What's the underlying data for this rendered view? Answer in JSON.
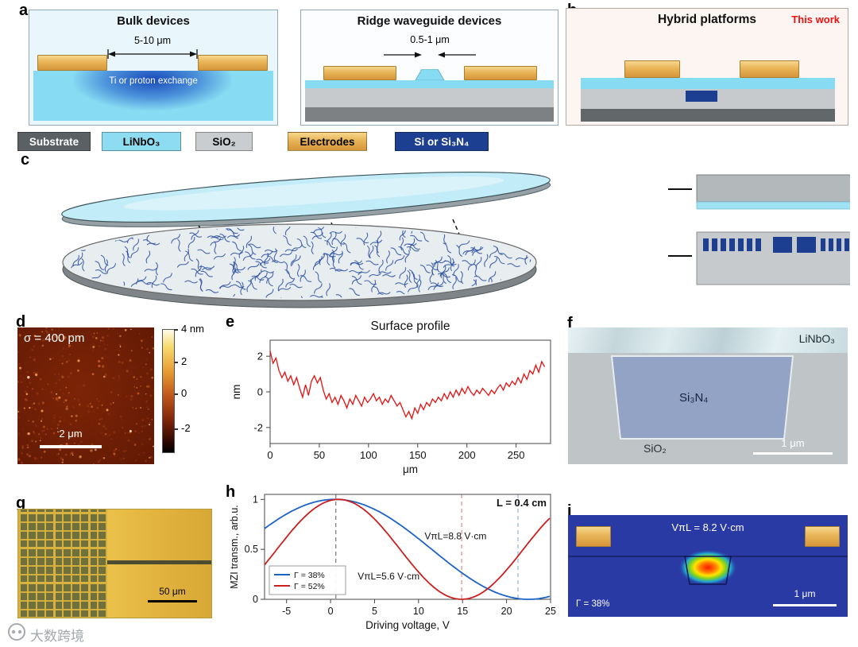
{
  "figure": {
    "panels": {
      "a": {
        "label": "a",
        "bulk": {
          "title": "Bulk devices",
          "dimension": "5-10 μm",
          "region_label": "Ti or proton exchange"
        },
        "ridge": {
          "title": "Ridge waveguide devices",
          "dimension": "0.5-1 μm"
        }
      },
      "legend": [
        {
          "name": "Substrate",
          "color": "#5b6064",
          "text_color": "#ffffff"
        },
        {
          "name": "LiNbO₃",
          "color": "#8edcf2",
          "text_color": "#000000"
        },
        {
          "name": "SiO₂",
          "color": "#c9cdd0",
          "text_color": "#000000"
        },
        {
          "name": "Electrodes",
          "color": "#e9b45c",
          "text_color": "#000000"
        },
        {
          "name": "Si or Si₃N₄",
          "color": "#1d3f91",
          "text_color": "#ffffff"
        }
      ],
      "b": {
        "label": "b",
        "title": "Hybrid platforms",
        "badge": "This work",
        "badge_color": "#ee1111"
      },
      "c": {
        "label": "c"
      },
      "d": {
        "label": "d",
        "sigma": "σ = 400 pm",
        "scalebar": "2 μm",
        "colorbar_labels": [
          "4 nm",
          "2",
          "0",
          "-2"
        ]
      },
      "e": {
        "label": "e"
      },
      "f": {
        "label": "f",
        "top_label": "LiNbO₃",
        "mid_label": "Si₃N₄",
        "bottom_label": "SiO₂",
        "scalebar": "1 μm"
      },
      "g": {
        "label": "g",
        "scalebar": "50 μm"
      },
      "h": {
        "label": "h"
      },
      "i": {
        "label": "i",
        "title": "VπL = 8.2 V·cm",
        "gamma": "Γ = 38%",
        "scalebar": "1 μm"
      }
    },
    "watermark": "大数跨境"
  },
  "chart_data": [
    {
      "id": "surface_profile",
      "type": "line",
      "title": "Surface profile",
      "xlabel": "μm",
      "ylabel": "nm",
      "xlim": [
        0,
        285
      ],
      "ylim": [
        -2.9,
        2.9
      ],
      "xticks": [
        0,
        50,
        100,
        150,
        200,
        250
      ],
      "yticks": [
        -2,
        0,
        2
      ],
      "line_color": "#e81010",
      "points": [
        [
          0,
          2.3
        ],
        [
          3,
          1.6
        ],
        [
          6,
          1.9
        ],
        [
          9,
          1.2
        ],
        [
          12,
          0.8
        ],
        [
          15,
          1.1
        ],
        [
          18,
          0.6
        ],
        [
          21,
          0.9
        ],
        [
          24,
          0.4
        ],
        [
          27,
          0.8
        ],
        [
          30,
          0.2
        ],
        [
          33,
          -0.3
        ],
        [
          36,
          0.4
        ],
        [
          39,
          -0.2
        ],
        [
          42,
          0.6
        ],
        [
          45,
          0.9
        ],
        [
          48,
          0.5
        ],
        [
          51,
          0.8
        ],
        [
          54,
          0.1
        ],
        [
          57,
          -0.4
        ],
        [
          60,
          -0.1
        ],
        [
          63,
          -0.6
        ],
        [
          66,
          -0.3
        ],
        [
          69,
          -0.7
        ],
        [
          72,
          -0.2
        ],
        [
          75,
          -0.5
        ],
        [
          78,
          -0.9
        ],
        [
          81,
          -0.4
        ],
        [
          84,
          -0.7
        ],
        [
          87,
          -0.2
        ],
        [
          90,
          -0.5
        ],
        [
          93,
          -0.8
        ],
        [
          96,
          -0.3
        ],
        [
          99,
          -0.6
        ],
        [
          102,
          -0.4
        ],
        [
          105,
          -0.1
        ],
        [
          108,
          -0.5
        ],
        [
          111,
          -0.3
        ],
        [
          114,
          -0.7
        ],
        [
          117,
          -0.4
        ],
        [
          120,
          -0.6
        ],
        [
          123,
          -0.2
        ],
        [
          126,
          -0.5
        ],
        [
          129,
          -0.8
        ],
        [
          132,
          -0.6
        ],
        [
          135,
          -1.0
        ],
        [
          138,
          -1.4
        ],
        [
          141,
          -1.1
        ],
        [
          144,
          -1.5
        ],
        [
          147,
          -0.9
        ],
        [
          150,
          -1.2
        ],
        [
          153,
          -0.7
        ],
        [
          156,
          -1.0
        ],
        [
          159,
          -0.6
        ],
        [
          162,
          -0.8
        ],
        [
          165,
          -0.4
        ],
        [
          168,
          -0.6
        ],
        [
          171,
          -0.3
        ],
        [
          174,
          -0.5
        ],
        [
          177,
          -0.1
        ],
        [
          180,
          -0.4
        ],
        [
          183,
          0.0
        ],
        [
          186,
          -0.3
        ],
        [
          189,
          0.1
        ],
        [
          192,
          -0.2
        ],
        [
          195,
          0.2
        ],
        [
          198,
          -0.1
        ],
        [
          201,
          0.3
        ],
        [
          204,
          0.0
        ],
        [
          207,
          -0.2
        ],
        [
          210,
          0.1
        ],
        [
          213,
          -0.1
        ],
        [
          216,
          0.2
        ],
        [
          219,
          0.0
        ],
        [
          222,
          -0.2
        ],
        [
          225,
          0.1
        ],
        [
          228,
          -0.1
        ],
        [
          231,
          0.2
        ],
        [
          234,
          0.4
        ],
        [
          237,
          0.1
        ],
        [
          240,
          0.5
        ],
        [
          243,
          0.3
        ],
        [
          246,
          0.6
        ],
        [
          249,
          0.4
        ],
        [
          252,
          0.8
        ],
        [
          255,
          0.5
        ],
        [
          258,
          1.0
        ],
        [
          261,
          0.7
        ],
        [
          264,
          1.2
        ],
        [
          267,
          1.0
        ],
        [
          270,
          1.5
        ],
        [
          273,
          1.1
        ],
        [
          276,
          1.7
        ],
        [
          279,
          1.4
        ]
      ]
    },
    {
      "id": "mzi_transmission",
      "type": "line",
      "title": "",
      "xlabel": "Driving voltage, V",
      "ylabel": "MZI transm., arb.u.",
      "xlim": [
        -7.5,
        25
      ],
      "ylim": [
        0,
        1.05
      ],
      "xticks": [
        -5,
        0,
        5,
        10,
        15,
        20,
        25
      ],
      "yticks": [
        0,
        0.5,
        1
      ],
      "annotation": "L = 0.4 cm",
      "series": [
        {
          "name": "Γ = 38%",
          "color": "#1c63c8",
          "label": "VπL=8.8 V·cm",
          "Vpi": 22,
          "V0": 0.5
        },
        {
          "name": "Γ = 52%",
          "color": "#cc1f1f",
          "label": "VπL=5.6 V·cm",
          "Vpi": 14,
          "V0": 0.9
        }
      ],
      "dashed_lines": [
        {
          "x": 0.6,
          "color": "#777777"
        },
        {
          "x": 14.9,
          "color": "#d89090"
        },
        {
          "x": 21.3,
          "color": "#92b4e4"
        }
      ],
      "legend_position": "lower left"
    }
  ]
}
